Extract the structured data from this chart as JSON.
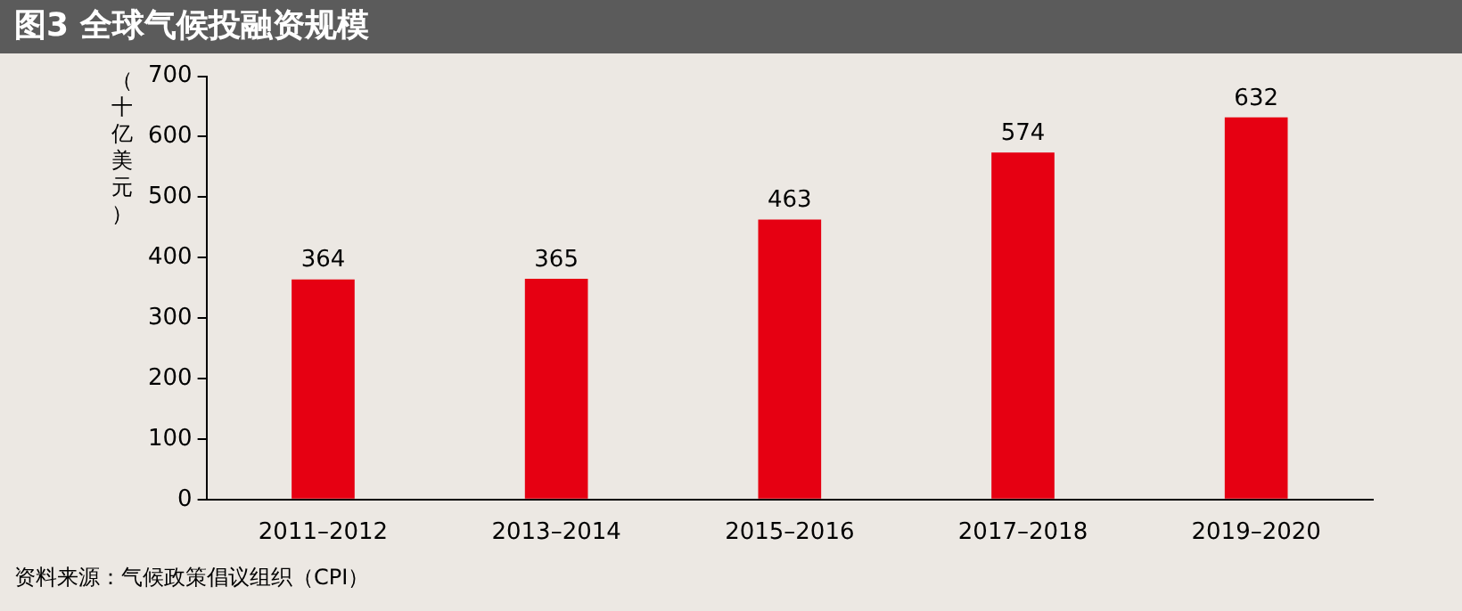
{
  "chart_data": {
    "type": "bar",
    "title": "图3 全球气候投融资规模",
    "ylabel": "（十亿美元）",
    "categories": [
      "2011–2012",
      "2013–2014",
      "2015–2016",
      "2017–2018",
      "2019–2020"
    ],
    "values": [
      364,
      365,
      463,
      574,
      632
    ],
    "color": "#e60012",
    "ylim": [
      0,
      700
    ],
    "yticks": [
      0,
      100,
      200,
      300,
      400,
      500,
      600,
      700
    ],
    "grid": false,
    "legend": false,
    "data_labels": true,
    "annotations": [
      "资料来源：气候政策倡议组织（CPI）"
    ]
  }
}
